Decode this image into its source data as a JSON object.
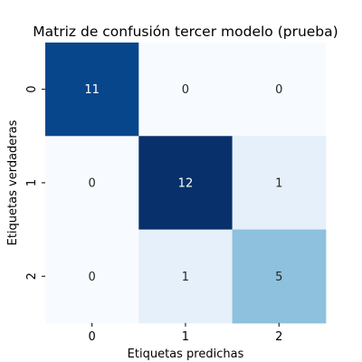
{
  "chart_data": {
    "type": "heatmap",
    "title": "Matriz de confusión tercer modelo (prueba)",
    "xlabel": "Etiquetas predichas",
    "ylabel": "Etiquetas verdaderas",
    "x_categories": [
      "0",
      "1",
      "2"
    ],
    "y_categories": [
      "0",
      "1",
      "2"
    ],
    "values": [
      [
        11,
        0,
        0
      ],
      [
        0,
        12,
        1
      ],
      [
        0,
        1,
        5
      ]
    ],
    "colormap": "Blues",
    "vmin": 0,
    "vmax": 12,
    "colorbar": false
  }
}
